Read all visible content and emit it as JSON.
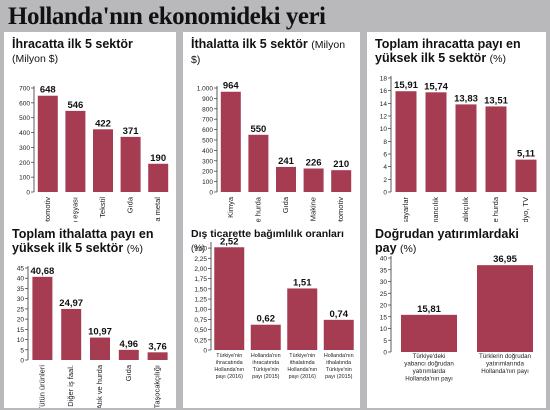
{
  "main_title": "Hollanda'nın ekonomideki yeri",
  "chart_data": [
    {
      "id": "c1",
      "type": "bar",
      "title": "İhracatta ilk 5 sektör",
      "unit": "(Milyon $)",
      "categories": [
        "Otomotiv",
        "Giyim eşyası",
        "Tekstil",
        "Gıda",
        "Ana metal"
      ],
      "values": [
        648,
        546,
        422,
        371,
        190
      ],
      "value_labels": [
        "648",
        "546",
        "422",
        "371",
        "190"
      ],
      "yticks": [
        0,
        100,
        200,
        300,
        400,
        500,
        600,
        700
      ],
      "ylim": [
        0,
        700
      ]
    },
    {
      "id": "c2",
      "type": "bar",
      "title": "İthalatta ilk 5 sektör",
      "unit": "(Milyon $)",
      "categories": [
        "Kimya",
        "Atık ve hurda",
        "Gıda",
        "Makine",
        "Otomotiv"
      ],
      "values": [
        964,
        550,
        241,
        226,
        210
      ],
      "value_labels": [
        "964",
        "550",
        "241",
        "226",
        "210"
      ],
      "yticks": [
        0,
        100,
        200,
        300,
        400,
        500,
        600,
        700,
        800,
        900,
        1000
      ],
      "ytick_labels": [
        "0",
        "100",
        "200",
        "300",
        "400",
        "500",
        "600",
        "700",
        "800",
        "900",
        "1.000"
      ],
      "ylim": [
        0,
        1000
      ]
    },
    {
      "id": "c3",
      "type": "bar",
      "title": "Toplam ihracatta payı en yüksek ilk 5 sektör",
      "unit": "(%)",
      "categories": [
        "Bilgisayarlar",
        "Ormancılık",
        "Balıkçılık",
        "Atık ve hurda",
        "Radyo, TV"
      ],
      "values": [
        15.91,
        15.74,
        13.83,
        13.51,
        5.11
      ],
      "value_labels": [
        "15,91",
        "15,74",
        "13,83",
        "13,51",
        "5,11"
      ],
      "yticks": [
        0,
        2,
        4,
        6,
        8,
        10,
        12,
        14,
        16,
        18
      ],
      "ylim": [
        0,
        18
      ]
    },
    {
      "id": "c4",
      "type": "bar",
      "title": "Toplam ithalatta payı en yüksek ilk 5 sektör",
      "unit": "(%)",
      "categories": [
        "Tütün ürünleri",
        "Diğer iş faal.",
        "Atık ve hurda",
        "Gıda",
        "Taşocakçılığı"
      ],
      "values": [
        40.68,
        24.97,
        10.97,
        4.96,
        3.76
      ],
      "value_labels": [
        "40,68",
        "24,97",
        "10,97",
        "4,96",
        "3,76"
      ],
      "yticks": [
        0,
        5,
        10,
        15,
        20,
        25,
        30,
        35,
        40,
        45
      ],
      "ylim": [
        0,
        45
      ]
    },
    {
      "id": "c5",
      "type": "bar",
      "title": "Dış ticarette bağımlılık oranları",
      "unit": "(%)",
      "categories": [
        "Türkiye'nin ihracatında Hollanda'nın payı (2016)",
        "Hollanda'nın ihracatında Türkiye'nin payı (2015)",
        "Türkiye'nin ithalatında Hollanda'nın payı (2016)",
        "Hollanda'nın ithalatında Türkiye'nin payı (2015)"
      ],
      "values": [
        2.52,
        0.62,
        1.51,
        0.74
      ],
      "value_labels": [
        "2,52",
        "0,62",
        "1,51",
        "0,74"
      ],
      "yticks": [
        0,
        0.25,
        0.5,
        0.75,
        1.0,
        1.25,
        1.5,
        1.75,
        2.0,
        2.25,
        2.5
      ],
      "ytick_labels": [
        "0",
        "0,25",
        "0,50",
        "0,75",
        "1,00",
        "1,25",
        "1,50",
        "1,75",
        "2,00",
        "2,25",
        "2,50"
      ],
      "ylim": [
        0,
        2.6
      ]
    },
    {
      "id": "c6",
      "type": "bar",
      "title": "Doğrudan yatırımlardaki pay",
      "unit": "(%)",
      "categories": [
        "Türkiye'deki yabancı doğrudan yatırımlarda Hollanda'nın payı",
        "Türklerin doğrudan yatırımlarında Hollanda'nın payı"
      ],
      "values": [
        15.81,
        36.95
      ],
      "value_labels": [
        "15,81",
        "36,95"
      ],
      "yticks": [
        0,
        5,
        10,
        15,
        20,
        25,
        30,
        35,
        40
      ],
      "ylim": [
        0,
        40
      ]
    }
  ],
  "colors": {
    "bar": "#a63c52",
    "axis": "#333333",
    "background": "#b9b9bb",
    "panel": "#ffffff"
  }
}
